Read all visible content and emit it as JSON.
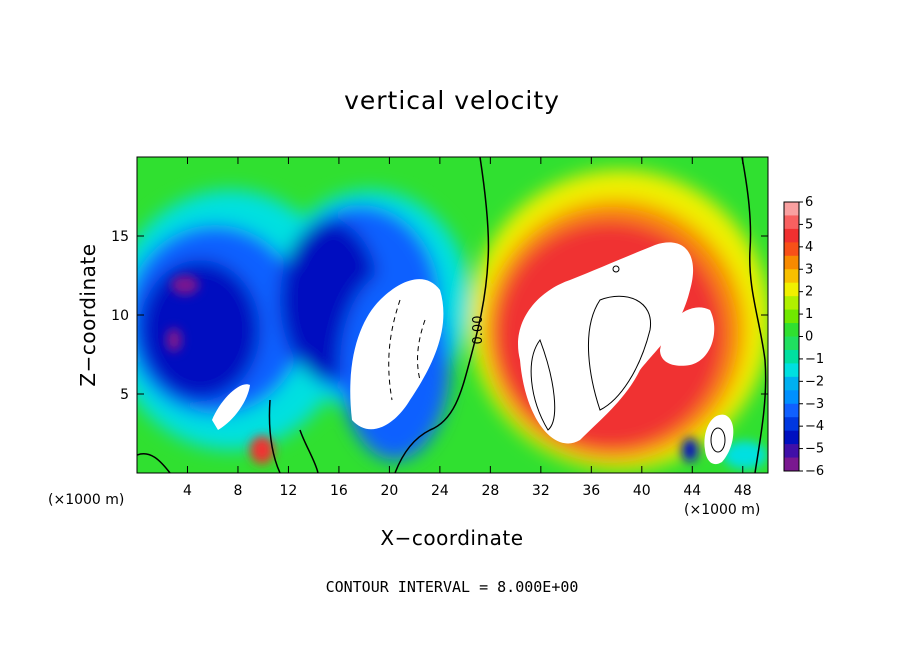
{
  "chart_data": {
    "type": "heatmap",
    "title": "vertical velocity",
    "xlabel": "X−coordinate",
    "ylabel": "Z−coordinate",
    "x_unit_left": "(×1000 m)",
    "x_unit_right": "(×1000 m)",
    "xlim": [
      0,
      50
    ],
    "ylim": [
      0,
      20
    ],
    "x_ticks": [
      4,
      8,
      12,
      16,
      20,
      24,
      28,
      32,
      36,
      40,
      44,
      48
    ],
    "y_ticks": [
      5,
      10,
      15
    ],
    "contour_note": "CONTOUR INTERVAL = 8.000E+00",
    "contour_label": "0.00",
    "zero_contour_x": 27,
    "colorbar": {
      "levels": [
        6,
        5,
        4,
        3,
        2,
        1,
        0,
        -1,
        -2,
        -3,
        -4,
        -5,
        -6
      ],
      "labels": [
        "6",
        "5",
        "4",
        "3",
        "2",
        "1",
        "0",
        "−1",
        "−2",
        "−3",
        "−4",
        "−5",
        "−6"
      ]
    },
    "colors": {
      "white": "#ffffff",
      "very_high": "#f9a0a0",
      "high": "#f03030",
      "orange": "#f88a00",
      "yellow": "#f0f000",
      "green": "#30e030",
      "cyan": "#00e0e0",
      "blue": "#1060ff",
      "dark_blue": "#0010c0",
      "purple": "#7a1890"
    },
    "features": [
      {
        "kind": "updraft",
        "x": 20.5,
        "z": 7.5,
        "value": 7
      },
      {
        "kind": "updraft",
        "x": 38,
        "z": 8,
        "value": 7
      },
      {
        "kind": "downdraft",
        "x": 6,
        "z": 11,
        "value": -5
      },
      {
        "kind": "downdraft",
        "x": 15,
        "z": 11,
        "value": -5
      },
      {
        "kind": "updraft",
        "x": 45.5,
        "z": 2,
        "value": 7
      },
      {
        "kind": "updraft",
        "x": 10,
        "z": 1.5,
        "value": 5
      }
    ]
  }
}
